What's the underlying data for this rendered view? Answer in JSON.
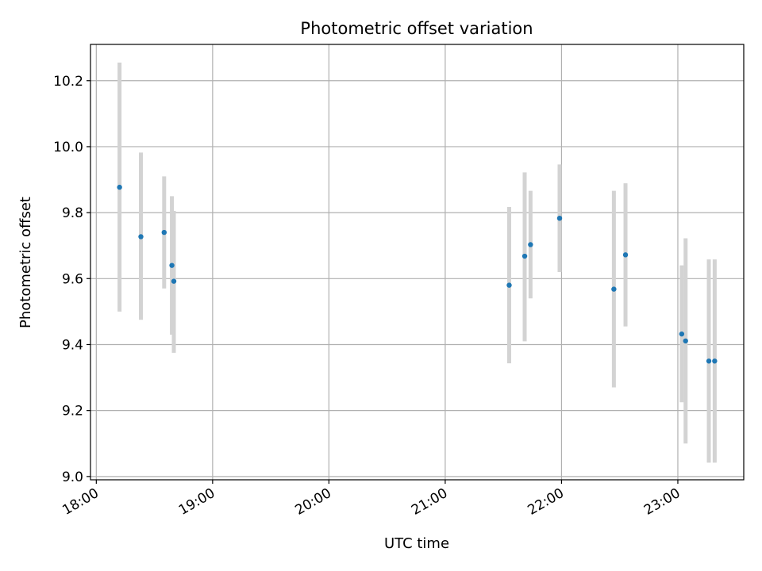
{
  "chart_data": {
    "type": "scatter",
    "title": "Photometric offset variation",
    "xlabel": "UTC time",
    "ylabel": "Photometric offset",
    "x_tick_labels": [
      "18:00",
      "19:00",
      "20:00",
      "21:00",
      "22:00",
      "23:00"
    ],
    "y_tick_labels": [
      "9.0",
      "9.2",
      "9.4",
      "9.6",
      "9.8",
      "10.0",
      "10.2"
    ],
    "xlim": [
      "17:57",
      "23:34"
    ],
    "ylim": [
      8.99,
      10.31
    ],
    "grid": true,
    "colors": {
      "point": "#1f77b4",
      "errorbar": "#d3d3d3",
      "grid": "#b0b0b0"
    },
    "points": [
      {
        "x": "18:12",
        "y": 9.877,
        "y_low": 9.5,
        "y_high": 10.255
      },
      {
        "x": "18:23",
        "y": 9.727,
        "y_low": 9.475,
        "y_high": 9.982
      },
      {
        "x": "18:35",
        "y": 9.74,
        "y_low": 9.57,
        "y_high": 9.91
      },
      {
        "x": "18:39",
        "y": 9.64,
        "y_low": 9.43,
        "y_high": 9.85
      },
      {
        "x": "18:40",
        "y": 9.592,
        "y_low": 9.375,
        "y_high": 9.805
      },
      {
        "x": "21:33",
        "y": 9.58,
        "y_low": 9.343,
        "y_high": 9.817
      },
      {
        "x": "21:41",
        "y": 9.668,
        "y_low": 9.41,
        "y_high": 9.922
      },
      {
        "x": "21:44",
        "y": 9.703,
        "y_low": 9.54,
        "y_high": 9.866
      },
      {
        "x": "21:59",
        "y": 9.783,
        "y_low": 9.62,
        "y_high": 9.946
      },
      {
        "x": "22:27",
        "y": 9.568,
        "y_low": 9.27,
        "y_high": 9.866
      },
      {
        "x": "22:33",
        "y": 9.672,
        "y_low": 9.455,
        "y_high": 9.889
      },
      {
        "x": "23:02",
        "y": 9.432,
        "y_low": 9.225,
        "y_high": 9.64
      },
      {
        "x": "23:04",
        "y": 9.411,
        "y_low": 9.1,
        "y_high": 9.722
      },
      {
        "x": "23:16",
        "y": 9.35,
        "y_low": 9.042,
        "y_high": 9.658
      },
      {
        "x": "23:19",
        "y": 9.35,
        "y_low": 9.042,
        "y_high": 9.658
      }
    ]
  }
}
